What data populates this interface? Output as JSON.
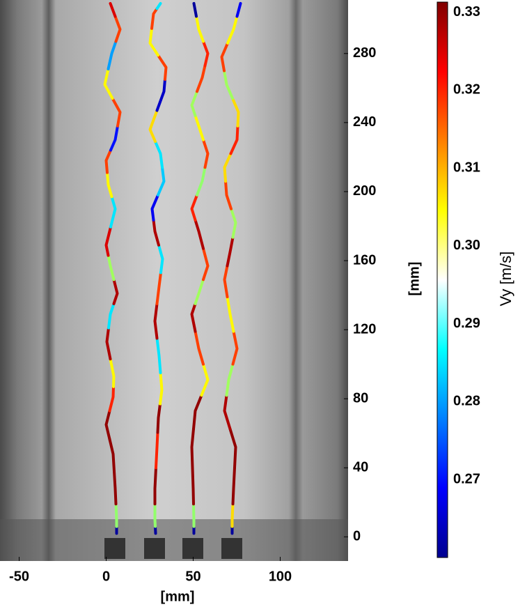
{
  "chart_data": {
    "type": "trajectory",
    "xlabel": "[mm]",
    "ylabel": "[mm]",
    "xlim": [
      -61,
      139
    ],
    "ylim": [
      -14,
      311
    ],
    "xticks": [
      -50,
      0,
      50,
      100
    ],
    "yticks": [
      0,
      40,
      80,
      120,
      160,
      200,
      240,
      280
    ],
    "colormap": "jet",
    "colorbar": {
      "label": "Vy [m/s]",
      "lim": [
        0.26,
        0.3313
      ],
      "ticks": [
        0.27,
        0.28,
        0.29,
        {
          "value": 0.3,
          "label": "0.30"
        },
        0.31,
        0.32,
        0.33
      ]
    },
    "series": [
      {
        "x": [
          6,
          6,
          5.2,
          4,
          0,
          4,
          4.4,
          0.4,
          2.4,
          6.4,
          2.4,
          0,
          5.2,
          1.2,
          0,
          5.2,
          8,
          -0.8,
          3.2,
          8,
          2.4
        ],
        "y": [
          2,
          10,
          28,
          48,
          65,
          81,
          93,
          113,
          129,
          141,
          157,
          169,
          190,
          204,
          218,
          230,
          246,
          262,
          280,
          294,
          309
        ],
        "values": [
          0.262,
          0.297,
          0.33,
          0.33,
          0.33,
          0.32,
          0.305,
          0.328,
          0.285,
          0.328,
          0.298,
          0.325,
          0.285,
          0.305,
          0.318,
          0.27,
          0.318,
          0.305,
          0.28,
          0.318,
          0.325
        ]
      },
      {
        "x": [
          28.4,
          28,
          28,
          29.2,
          30,
          32,
          30.4,
          28,
          30.4,
          32.4,
          28,
          26.4,
          33.2,
          31.2,
          25.2,
          33.2,
          34.4,
          25.2,
          27.2,
          31.2
        ],
        "y": [
          2,
          10,
          28,
          52,
          69,
          85,
          105,
          125,
          145,
          161,
          177,
          190,
          206,
          222,
          236,
          258,
          272,
          286,
          303,
          309
        ],
        "values": [
          0.262,
          0.297,
          0.33,
          0.32,
          0.33,
          0.305,
          0.285,
          0.328,
          0.318,
          0.285,
          0.328,
          0.268,
          0.283,
          0.285,
          0.307,
          0.265,
          0.318,
          0.305,
          0.318,
          0.285
        ]
      },
      {
        "x": [
          50.4,
          50.4,
          50,
          49.2,
          51.2,
          58.4,
          53.2,
          49.2,
          53.2,
          58.4,
          53.2,
          49.2,
          55.2,
          58.4,
          53.2,
          49.2,
          55.2,
          58.4,
          53.2,
          50.4
        ],
        "y": [
          2,
          10,
          28,
          52,
          73,
          91,
          109,
          129,
          141,
          157,
          177,
          190,
          206,
          222,
          238,
          250,
          266,
          280,
          294,
          309
        ],
        "values": [
          0.262,
          0.297,
          0.33,
          0.33,
          0.33,
          0.305,
          0.318,
          0.328,
          0.298,
          0.318,
          0.328,
          0.32,
          0.297,
          0.318,
          0.305,
          0.298,
          0.318,
          0.32,
          0.305,
          0.262
        ]
      },
      {
        "x": [
          72.4,
          72.4,
          73.2,
          74.4,
          68,
          70.4,
          75.2,
          71.2,
          68,
          71.2,
          74.4,
          69.2,
          68,
          75.2,
          76,
          69.2,
          66.4,
          73.2,
          77.2
        ],
        "y": [
          2,
          10,
          28,
          52,
          73,
          91,
          109,
          129,
          149,
          165,
          182,
          198,
          214,
          230,
          246,
          262,
          278,
          294,
          309
        ],
        "values": [
          0.262,
          0.307,
          0.33,
          0.33,
          0.328,
          0.298,
          0.318,
          0.305,
          0.318,
          0.328,
          0.298,
          0.318,
          0.307,
          0.32,
          0.307,
          0.298,
          0.318,
          0.305,
          0.268
        ]
      }
    ]
  }
}
